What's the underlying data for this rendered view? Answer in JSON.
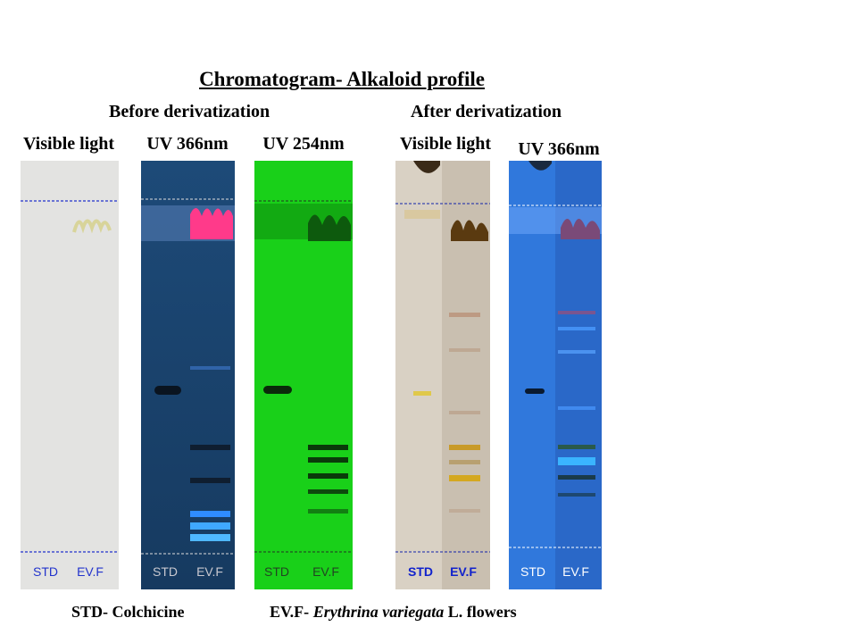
{
  "title": "Chromatogram- Alkaloid profile",
  "sections": {
    "before": "Before derivatization",
    "after": "After derivatization"
  },
  "plates": [
    {
      "label": "Visible light",
      "lanes": [
        "STD",
        "EV.F"
      ],
      "background": "#e3e3e1",
      "lane_label_color": "#2233cc",
      "line_color": "#2233cc"
    },
    {
      "label": "UV 366nm",
      "lanes": [
        "STD",
        "EV.F"
      ],
      "background": "#1a3f66",
      "lane_label_color": "#c8c8d0",
      "line_color": "#dddddd"
    },
    {
      "label": "UV 254nm",
      "lanes": [
        "STD",
        "EV.F"
      ],
      "background": "#19d019",
      "lane_label_color": "#224422",
      "line_color": "#223322"
    },
    {
      "label": "Visible light",
      "lanes": [
        "STD",
        "EV.F"
      ],
      "background": "#cfc6b8",
      "lane_label_color": "#1122cc",
      "line_color": "#1122aa"
    },
    {
      "label": "UV 366nm",
      "lanes": [
        "STD",
        "EV.F"
      ],
      "background": "#2f72d8",
      "lane_label_color": "#ffffff",
      "line_color": "#ffffff"
    }
  ],
  "footer": {
    "std_legend": "STD- Colchicine",
    "evf_prefix": "EV.F- ",
    "evf_species": "Erythrina variegata",
    "evf_suffix": " L. flowers"
  }
}
